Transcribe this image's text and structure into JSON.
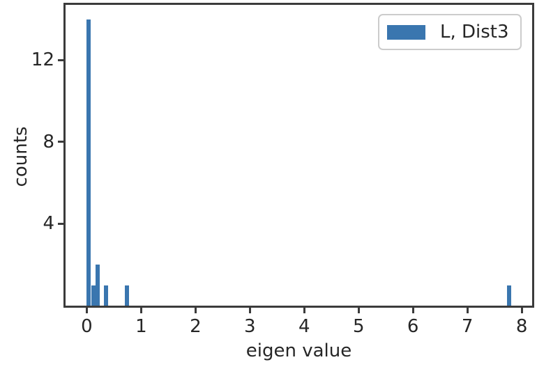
{
  "figure": {
    "legend": {
      "entries": [
        "L, Dist3"
      ]
    }
  },
  "chart_data": {
    "type": "bar",
    "subtype": "histogram",
    "title": "",
    "xlabel": "eigen value",
    "ylabel": "counts",
    "legend": [
      "L, Dist3"
    ],
    "legend_position": "upper right",
    "grid": false,
    "bar_color": "#3a76af",
    "spine_color": "#3b3b3b",
    "text_color": "#262626",
    "xlim": [
      -0.39,
      8.19
    ],
    "ylim": [
      0,
      14.7
    ],
    "xticks": [
      0,
      1,
      2,
      3,
      4,
      5,
      6,
      7,
      8
    ],
    "yticks": [
      4,
      8,
      12
    ],
    "bin_width": 0.078,
    "series": [
      {
        "name": "L, Dist3",
        "bins": [
          {
            "x0": 0.0,
            "count": 14
          },
          {
            "x0": 0.078,
            "count": 1
          },
          {
            "x0": 0.156,
            "count": 2
          },
          {
            "x0": 0.312,
            "count": 1
          },
          {
            "x0": 0.702,
            "count": 1
          },
          {
            "x0": 7.722,
            "count": 1
          }
        ]
      }
    ]
  }
}
